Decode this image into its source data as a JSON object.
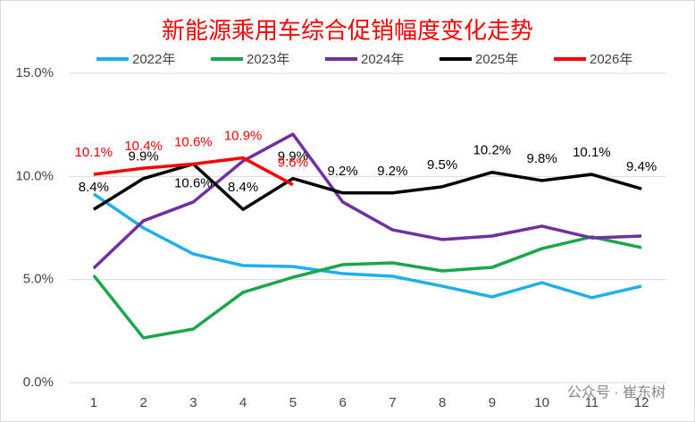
{
  "chart_data": {
    "type": "line",
    "title": "新能源乘用车综合促销幅度变化走势",
    "watermark": "公众号 · 崔东树",
    "categories": [
      "1",
      "2",
      "3",
      "4",
      "5",
      "6",
      "7",
      "8",
      "9",
      "10",
      "11",
      "12"
    ],
    "ylim": [
      0,
      15
    ],
    "yticks": [
      {
        "value": 0,
        "label": "0.0%"
      },
      {
        "value": 5,
        "label": "5.0%"
      },
      {
        "value": 10,
        "label": "10.0%"
      },
      {
        "value": 15,
        "label": "15.0%"
      }
    ],
    "grid": true,
    "legend": "top",
    "series": [
      {
        "name": "2022年",
        "color": "#1fb0ea",
        "values": [
          9.15,
          7.5,
          6.24,
          5.68,
          5.63,
          5.29,
          5.16,
          4.68,
          4.16,
          4.85,
          4.12,
          4.68
        ]
      },
      {
        "name": "2023年",
        "color": "#1aa64a",
        "values": [
          5.2,
          2.17,
          2.6,
          4.38,
          5.11,
          5.72,
          5.81,
          5.42,
          5.59,
          6.5,
          7.07,
          6.55
        ]
      },
      {
        "name": "2024年",
        "color": "#7030a0",
        "values": [
          5.55,
          7.85,
          8.76,
          10.75,
          12.05,
          8.76,
          7.41,
          6.94,
          7.11,
          7.59,
          7.02,
          7.11
        ]
      },
      {
        "name": "2025年",
        "color": "#000000",
        "values": [
          8.4,
          9.9,
          10.6,
          8.4,
          9.9,
          9.2,
          9.2,
          9.5,
          10.2,
          9.8,
          10.1,
          9.4
        ],
        "value_labels": [
          "8.4%",
          "9.9%",
          "10.6%",
          "8.4%",
          "9.9%",
          "9.2%",
          "9.2%",
          "9.5%",
          "10.2%",
          "9.8%",
          "10.1%",
          "9.4%"
        ]
      },
      {
        "name": "2026年",
        "color": "#ff0000",
        "values": [
          10.1,
          10.4,
          10.6,
          10.9,
          9.6,
          null,
          null,
          null,
          null,
          null,
          null,
          null
        ],
        "value_labels": [
          "10.1%",
          "10.4%",
          "10.6%",
          "10.9%",
          "9.6%",
          null,
          null,
          null,
          null,
          null,
          null,
          null
        ]
      }
    ]
  }
}
